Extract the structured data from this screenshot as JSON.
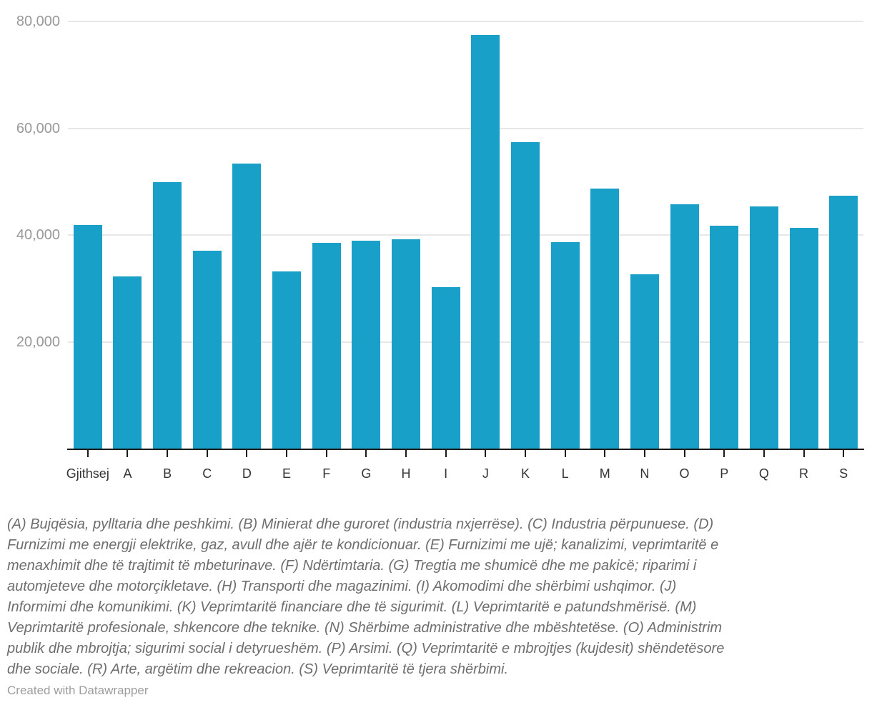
{
  "chart_data": {
    "type": "bar",
    "categories": [
      "Gjithsej",
      "A",
      "B",
      "C",
      "D",
      "E",
      "F",
      "G",
      "H",
      "I",
      "J",
      "K",
      "L",
      "M",
      "N",
      "O",
      "P",
      "Q",
      "R",
      "S"
    ],
    "values": [
      41900,
      32300,
      49900,
      37100,
      53400,
      33200,
      38500,
      38900,
      39200,
      30300,
      77400,
      57400,
      38600,
      48700,
      32600,
      45800,
      41700,
      45300,
      41300,
      47300
    ],
    "title": "",
    "xlabel": "",
    "ylabel": "",
    "ylim": [
      0,
      80000
    ],
    "yticks": [
      {
        "value": 20000,
        "label": "20,000"
      },
      {
        "value": 40000,
        "label": "40,000"
      },
      {
        "value": 60000,
        "label": "60,000"
      },
      {
        "value": 80000,
        "label": "80,000"
      }
    ],
    "grid": true,
    "legend": "none",
    "bar_color": "#18a0c8"
  },
  "footnote": {
    "lines": [
      "(A) Bujqësia, pylltaria dhe peshkimi. (B) Minierat dhe guroret (industria nxjerrëse). (C) Industria përpunuese. (D)",
      "Furnizimi me energji elektrike, gaz, avull dhe ajër te kondicionuar. (E) Furnizimi me ujë; kanalizimi, veprimtaritë e",
      "menaxhimit dhe të trajtimit të mbeturinave. (F) Ndërtimtaria. (G) Tregtia me shumicë dhe me pakicë; riparimi i",
      "automjeteve dhe motorçikletave. (H) Transporti dhe magazinimi. (I) Akomodimi dhe shërbimi ushqimor. (J)",
      "Informimi dhe komunikimi. (K) Veprimtaritë financiare dhe të sigurimit. (L) Veprimtaritë e patundshmërisë. (M)",
      "Veprimtaritë profesionale, shkencore dhe teknike. (N) Shërbime administrative dhe mbështetëse. (O) Administrim",
      "publik dhe mbrojtja; sigurimi social i detyrueshëm. (P) Arsimi. (Q) Veprimtaritë e mbrojtjes (kujdesit) shëndetësore",
      "dhe sociale. (R) Arte, argëtim dhe rekreacion. (S) Veprimtaritë të tjera shërbimi."
    ]
  },
  "credit": {
    "text": "Created with Datawrapper"
  },
  "colors": {
    "bar": "#18a0c8",
    "gridline": "#e7e7e7",
    "axis": "#1a1a1a",
    "y_label": "#999999",
    "x_label": "#333333",
    "footnote": "#6e6e6e",
    "credit": "#9d9d9d"
  }
}
